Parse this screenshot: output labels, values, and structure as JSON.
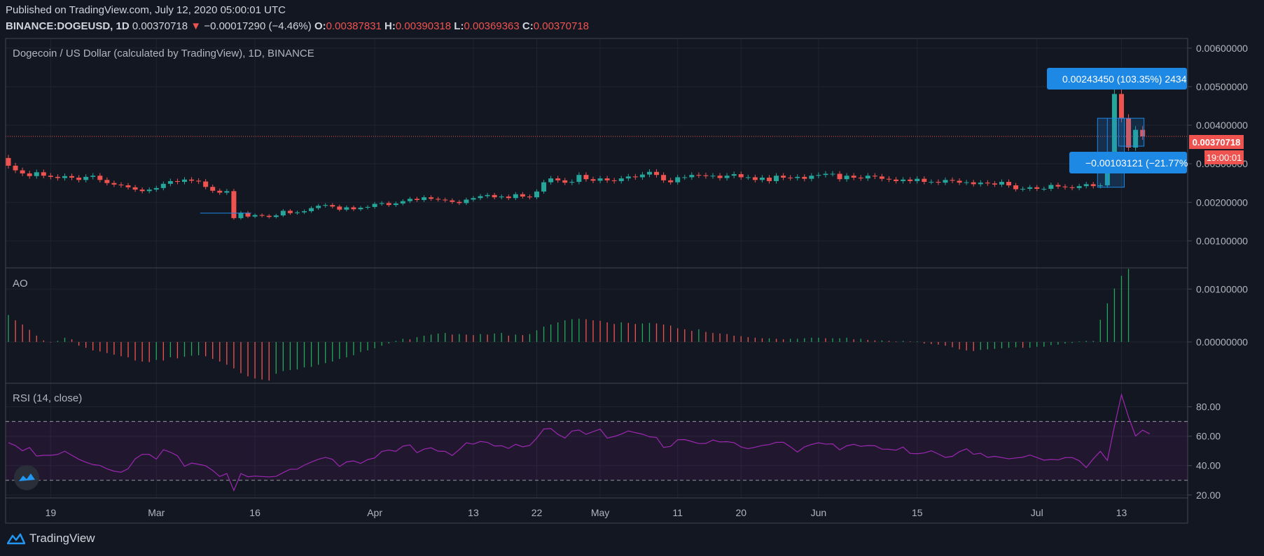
{
  "header": {
    "published": "Published on TradingView.com, July 12, 2020 05:00:01 UTC",
    "symbol": "BINANCE:DOGEUSD, 1D",
    "last": "0.00370718",
    "change": "−0.00017290 (−4.46%)",
    "o_label": "O:",
    "o_value": "0.00387831",
    "h_label": "H:",
    "h_value": "0.00390318",
    "l_label": "L:",
    "l_value": "0.00369363",
    "c_label": "C:",
    "c_value": "0.00370718"
  },
  "main_title": "Dogecoin / US Dollar (calculated by TradingView), 1D, BINANCE",
  "ao_title": "AO",
  "rsi_title": "RSI (14, close)",
  "price_label": "0.00370718",
  "countdown_label": "19:00:01",
  "measure_up_label": "0.00243450 (103.35%) 2434",
  "measure_down_label": "−0.00103121 (−21.77%",
  "brand": "TradingView",
  "colors": {
    "up": "#26a69a",
    "down": "#ef5350",
    "background": "#131722",
    "rsi_line": "#9c27b0",
    "measure": "#1e88e5"
  },
  "chart_data": {
    "type": "candlestick",
    "x_tick_labels": [
      "19",
      "Mar",
      "16",
      "Apr",
      "13",
      "22",
      "May",
      "11",
      "20",
      "Jun",
      "15",
      "Jul",
      "13"
    ],
    "x_tick_indices": [
      6,
      21,
      35,
      52,
      66,
      75,
      84,
      95,
      104,
      115,
      129,
      146,
      158
    ],
    "price_axis": {
      "ticks": [
        "0.00600000",
        "0.00500000",
        "0.00400000",
        "0.00300000",
        "0.00200000",
        "0.00100000"
      ],
      "range": [
        0.0003,
        0.00625
      ]
    },
    "ao_axis": {
      "ticks": [
        "0.00100000",
        "0.00000000"
      ],
      "range": [
        -0.00078,
        0.0014
      ]
    },
    "rsi_axis": {
      "ticks": [
        "80.00",
        "60.00",
        "40.00",
        "20.00"
      ],
      "range": [
        18,
        96
      ],
      "bands": [
        30,
        70
      ]
    },
    "close": [
      0.00295,
      0.00283,
      0.00275,
      0.00268,
      0.00278,
      0.00269,
      0.00266,
      0.00263,
      0.00268,
      0.00264,
      0.00258,
      0.00266,
      0.00269,
      0.00258,
      0.0025,
      0.00246,
      0.00244,
      0.00239,
      0.00233,
      0.00229,
      0.00233,
      0.00237,
      0.00248,
      0.00255,
      0.00253,
      0.00259,
      0.00256,
      0.00254,
      0.0024,
      0.0023,
      0.00225,
      0.00229,
      0.00159,
      0.00173,
      0.00163,
      0.00167,
      0.00165,
      0.00162,
      0.00166,
      0.00178,
      0.00172,
      0.00174,
      0.00177,
      0.00185,
      0.00191,
      0.00193,
      0.00189,
      0.00181,
      0.00187,
      0.00182,
      0.00186,
      0.00188,
      0.00196,
      0.00198,
      0.00193,
      0.00197,
      0.00203,
      0.00209,
      0.00206,
      0.00213,
      0.00209,
      0.00207,
      0.00205,
      0.00201,
      0.00198,
      0.00207,
      0.00211,
      0.00216,
      0.00219,
      0.00213,
      0.00215,
      0.00211,
      0.00221,
      0.00215,
      0.00213,
      0.00228,
      0.00252,
      0.00262,
      0.00257,
      0.00251,
      0.00253,
      0.00271,
      0.0026,
      0.00256,
      0.00262,
      0.00257,
      0.00255,
      0.00262,
      0.00267,
      0.00265,
      0.00272,
      0.00279,
      0.00271,
      0.00257,
      0.00252,
      0.00265,
      0.00265,
      0.00271,
      0.0027,
      0.00268,
      0.00269,
      0.00263,
      0.00269,
      0.00273,
      0.00265,
      0.00265,
      0.00258,
      0.00264,
      0.00255,
      0.00269,
      0.00264,
      0.00263,
      0.00266,
      0.00261,
      0.00269,
      0.00271,
      0.00274,
      0.00274,
      0.0026,
      0.00269,
      0.00264,
      0.00262,
      0.00269,
      0.00267,
      0.00261,
      0.00259,
      0.00255,
      0.00259,
      0.00255,
      0.00261,
      0.00253,
      0.00253,
      0.00251,
      0.00258,
      0.00256,
      0.00251,
      0.00252,
      0.00247,
      0.00251,
      0.00249,
      0.00246,
      0.00253,
      0.00244,
      0.00234,
      0.00235,
      0.00239,
      0.00235,
      0.00235,
      0.00245,
      0.00241,
      0.00239,
      0.00237,
      0.00242,
      0.00247,
      0.00242,
      0.00244,
      0.00287,
      0.00481,
      0.00418,
      0.00342,
      0.00388,
      0.00371
    ],
    "ao": [
      0.00051,
      0.00041,
      0.00033,
      0.00023,
      0.00012,
      3e-05,
      -1e-05,
      2e-05,
      8e-05,
      5e-05,
      -7e-05,
      -0.00011,
      -0.00016,
      -0.00018,
      -0.00021,
      -0.00024,
      -0.00027,
      -0.00029,
      -0.00035,
      -0.00037,
      -0.00038,
      -0.00034,
      -0.00035,
      -0.00029,
      -0.00031,
      -0.00028,
      -0.00026,
      -0.00025,
      -0.00027,
      -0.00032,
      -0.00037,
      -0.00043,
      -0.0005,
      -0.00059,
      -0.00065,
      -0.00069,
      -0.00071,
      -0.00073,
      -0.0006,
      -0.00055,
      -0.00053,
      -0.00052,
      -0.00048,
      -0.00047,
      -0.00043,
      -0.0004,
      -0.00037,
      -0.00032,
      -0.00029,
      -0.00025,
      -0.00019,
      -0.00016,
      -0.00012,
      -7e-05,
      -3e-05,
      2e-05,
      6e-05,
      5e-05,
      9e-05,
      0.00012,
      0.00014,
      0.00016,
      0.00017,
      0.00014,
      0.00015,
      0.00014,
      0.00013,
      0.00015,
      0.00014,
      0.00016,
      0.00017,
      0.00012,
      0.00014,
      0.00013,
      0.00015,
      0.00022,
      0.00029,
      0.00033,
      0.00037,
      0.00041,
      0.00043,
      0.00044,
      0.00043,
      0.00041,
      0.0004,
      0.00037,
      0.00034,
      0.00037,
      0.00036,
      0.00034,
      0.00035,
      0.00036,
      0.00035,
      0.00033,
      0.00031,
      0.00026,
      0.00024,
      0.00021,
      0.00024,
      0.00019,
      0.00017,
      0.00016,
      0.00015,
      0.00012,
      0.00011,
      9e-05,
      8e-05,
      7e-05,
      7e-05,
      6e-05,
      5e-05,
      6e-05,
      6e-05,
      7e-05,
      8e-05,
      8e-05,
      7e-05,
      7e-05,
      7e-05,
      8e-05,
      5e-05,
      6e-05,
      4e-05,
      3e-05,
      3e-05,
      2e-05,
      1e-05,
      2e-05,
      1e-05,
      1e-05,
      -3e-05,
      -4e-05,
      -5e-05,
      -7e-05,
      -0.0001,
      -0.00014,
      -0.00016,
      -0.00017,
      -0.00015,
      -0.00014,
      -0.00013,
      -0.00012,
      -0.00011,
      -0.0001,
      -0.00011,
      -0.00011,
      -9e-05,
      -9e-05,
      -6e-05,
      -5e-05,
      -3e-05,
      -2e-05,
      1e-05,
      2e-05,
      2e-05,
      0.00042,
      0.00073,
      0.00101,
      0.00125,
      0.00138
    ],
    "rsi": [
      55.6,
      53.6,
      50.1,
      52.3,
      46.5,
      47,
      47,
      47.6,
      49.8,
      47,
      44.3,
      42.3,
      40.7,
      40.1,
      37.8,
      36.2,
      35.5,
      37.9,
      44.6,
      47.7,
      47.6,
      44.4,
      50.8,
      49.1,
      46.7,
      39.5,
      41.7,
      40.9,
      39.9,
      36.7,
      32.6,
      34.6,
      23.1,
      34.6,
      32.4,
      32.9,
      32.6,
      32.3,
      32.7,
      35.2,
      37.5,
      37.6,
      40.3,
      42.4,
      44.3,
      45.6,
      44.3,
      39.4,
      42.5,
      43.2,
      41.5,
      44.1,
      45.2,
      49.6,
      50.6,
      49.7,
      53.2,
      54.1,
      48.8,
      51.2,
      52.1,
      49.8,
      49.7,
      46.9,
      50.9,
      55.5,
      54.6,
      56.4,
      55.8,
      53.3,
      53.5,
      51.7,
      54.5,
      52.8,
      53.7,
      58.7,
      64.9,
      65.2,
      61.3,
      58.7,
      63.5,
      64.2,
      61.3,
      63.1,
      64.8,
      58.7,
      59.8,
      61.4,
      63.6,
      62.4,
      61.4,
      59.6,
      59.1,
      52.4,
      53.1,
      57.6,
      57.7,
      56.4,
      55,
      55.1,
      57.4,
      56.1,
      56.3,
      55.6,
      52.7,
      51.5,
      52.5,
      53.7,
      54.3,
      55.8,
      55.9,
      52.8,
      49.2,
      52.7,
      54.4,
      55.5,
      54.6,
      54.8,
      50.7,
      53.5,
      54.5,
      53.1,
      53.6,
      53.5,
      51.2,
      51.1,
      50.5,
      52.6,
      48.3,
      48.1,
      48.6,
      50.1,
      47.9,
      45.6,
      46.3,
      49.5,
      51.4,
      47.7,
      48.4,
      45.6,
      46.3,
      45.5,
      44.6,
      45.2,
      45.7,
      47.2,
      45.5,
      43.7,
      44.2,
      43.9,
      45.4,
      45.5,
      43.3,
      38.7,
      44.6,
      49.7,
      43.5,
      66.8,
      88.2,
      73,
      60.1,
      64.1,
      61.6
    ],
    "measure_up": {
      "change": 0.0024345,
      "percent": 103.35
    },
    "measure_down": {
      "change": -0.00103121,
      "percent": -21.77
    }
  }
}
